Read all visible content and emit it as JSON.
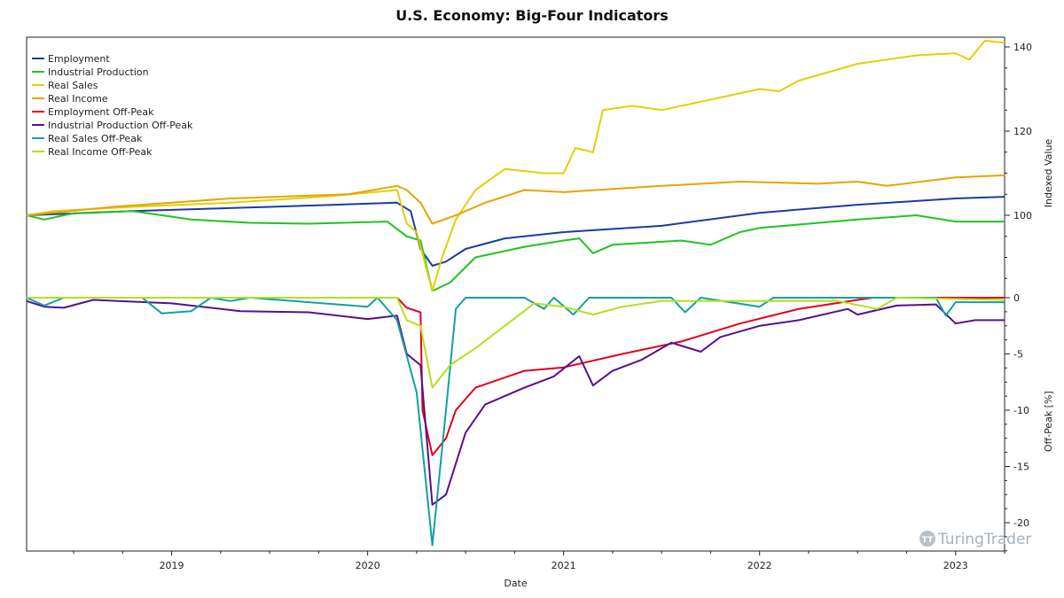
{
  "chart_data": {
    "type": "line",
    "title": "U.S. Economy: Big-Four Indicators",
    "xlabel": "Date",
    "ylabel_upper": "Indexed Value",
    "ylabel_lower": "Off-Peak [%]",
    "xlim": [
      2018.26,
      2023.25
    ],
    "ylim_upper": [
      80,
      143
    ],
    "ylim_lower": [
      -22.5,
      0
    ],
    "x_ticks": [
      "2019",
      "2020",
      "2021",
      "2022",
      "2023"
    ],
    "y_ticks_upper": [
      "100",
      "120",
      "140"
    ],
    "y_ticks_lower": [
      "0",
      "-5",
      "-10",
      "-15",
      "-20"
    ],
    "legend_position": "top-left",
    "watermark": "TuringTrader",
    "series": [
      {
        "name": "Employment",
        "panel": "upper",
        "color": "#1c3c9c",
        "points": [
          [
            2018.26,
            100
          ],
          [
            2018.8,
            101
          ],
          [
            2019.5,
            102
          ],
          [
            2020.15,
            103
          ],
          [
            2020.22,
            101
          ],
          [
            2020.27,
            92
          ],
          [
            2020.33,
            88
          ],
          [
            2020.4,
            89
          ],
          [
            2020.5,
            92
          ],
          [
            2020.7,
            94.5
          ],
          [
            2021.0,
            96
          ],
          [
            2021.5,
            97.5
          ],
          [
            2022.0,
            100.6
          ],
          [
            2022.5,
            102.5
          ],
          [
            2023.0,
            104
          ],
          [
            2023.25,
            104.4
          ]
        ]
      },
      {
        "name": "Industrial Production",
        "panel": "upper",
        "color": "#22c322",
        "points": [
          [
            2018.26,
            100
          ],
          [
            2018.35,
            99
          ],
          [
            2018.5,
            100.5
          ],
          [
            2018.8,
            101
          ],
          [
            2019.1,
            99
          ],
          [
            2019.4,
            98.2
          ],
          [
            2019.7,
            98
          ],
          [
            2020.1,
            98.5
          ],
          [
            2020.2,
            95
          ],
          [
            2020.27,
            94
          ],
          [
            2020.33,
            82
          ],
          [
            2020.42,
            84
          ],
          [
            2020.55,
            90
          ],
          [
            2020.8,
            92.5
          ],
          [
            2021.0,
            94
          ],
          [
            2021.08,
            94.5
          ],
          [
            2021.15,
            91
          ],
          [
            2021.25,
            93
          ],
          [
            2021.6,
            94
          ],
          [
            2021.75,
            93
          ],
          [
            2021.9,
            96
          ],
          [
            2022.0,
            97
          ],
          [
            2022.5,
            99
          ],
          [
            2022.8,
            100
          ],
          [
            2023.0,
            98.5
          ],
          [
            2023.25,
            98.5
          ]
        ]
      },
      {
        "name": "Real Sales",
        "panel": "upper",
        "color": "#e2d000",
        "points": [
          [
            2018.26,
            100
          ],
          [
            2018.4,
            101
          ],
          [
            2018.8,
            102
          ],
          [
            2019.3,
            103
          ],
          [
            2019.8,
            104.5
          ],
          [
            2020.15,
            106
          ],
          [
            2020.2,
            98
          ],
          [
            2020.25,
            96
          ],
          [
            2020.33,
            82
          ],
          [
            2020.38,
            90
          ],
          [
            2020.45,
            99
          ],
          [
            2020.55,
            106
          ],
          [
            2020.7,
            111
          ],
          [
            2020.9,
            110
          ],
          [
            2021.0,
            110
          ],
          [
            2021.06,
            116
          ],
          [
            2021.15,
            115
          ],
          [
            2021.2,
            125
          ],
          [
            2021.35,
            126
          ],
          [
            2021.5,
            125
          ],
          [
            2021.7,
            127
          ],
          [
            2022.0,
            130
          ],
          [
            2022.1,
            129.5
          ],
          [
            2022.2,
            132
          ],
          [
            2022.5,
            136
          ],
          [
            2022.8,
            138
          ],
          [
            2023.0,
            138.5
          ],
          [
            2023.07,
            137
          ],
          [
            2023.15,
            141.5
          ],
          [
            2023.25,
            141
          ]
        ]
      },
      {
        "name": "Real Income",
        "panel": "upper",
        "color": "#e8a200",
        "points": [
          [
            2018.26,
            100
          ],
          [
            2018.7,
            102
          ],
          [
            2019.3,
            104
          ],
          [
            2019.9,
            105
          ],
          [
            2020.15,
            107
          ],
          [
            2020.2,
            106
          ],
          [
            2020.27,
            103
          ],
          [
            2020.33,
            98
          ],
          [
            2020.45,
            100
          ],
          [
            2020.6,
            103
          ],
          [
            2020.8,
            106
          ],
          [
            2021.0,
            105.5
          ],
          [
            2021.5,
            107
          ],
          [
            2021.9,
            108
          ],
          [
            2022.3,
            107.5
          ],
          [
            2022.5,
            108
          ],
          [
            2022.65,
            107
          ],
          [
            2023.0,
            109
          ],
          [
            2023.25,
            109.5
          ]
        ]
      },
      {
        "name": "Employment Off-Peak",
        "panel": "lower",
        "color": "#e4001c",
        "points": [
          [
            2018.26,
            0
          ],
          [
            2020.15,
            0
          ],
          [
            2020.2,
            -0.9
          ],
          [
            2020.27,
            -1.3
          ],
          [
            2020.28,
            -10
          ],
          [
            2020.33,
            -14
          ],
          [
            2020.4,
            -12.5
          ],
          [
            2020.45,
            -10
          ],
          [
            2020.55,
            -8
          ],
          [
            2020.8,
            -6.5
          ],
          [
            2021.0,
            -6.2
          ],
          [
            2021.3,
            -5
          ],
          [
            2021.6,
            -3.9
          ],
          [
            2021.9,
            -2.3
          ],
          [
            2022.2,
            -1
          ],
          [
            2022.5,
            -0.2
          ],
          [
            2022.58,
            0
          ],
          [
            2023.25,
            0
          ]
        ]
      },
      {
        "name": "Industrial Production Off-Peak",
        "panel": "lower",
        "color": "#561090",
        "points": [
          [
            2018.26,
            -0.3
          ],
          [
            2018.35,
            -0.8
          ],
          [
            2018.45,
            -0.9
          ],
          [
            2018.6,
            -0.2
          ],
          [
            2019.0,
            -0.5
          ],
          [
            2019.35,
            -1.2
          ],
          [
            2019.7,
            -1.3
          ],
          [
            2020.0,
            -1.9
          ],
          [
            2020.15,
            -1.6
          ],
          [
            2020.2,
            -5
          ],
          [
            2020.27,
            -6
          ],
          [
            2020.33,
            -18.4
          ],
          [
            2020.4,
            -17.5
          ],
          [
            2020.5,
            -12
          ],
          [
            2020.6,
            -9.5
          ],
          [
            2020.8,
            -8
          ],
          [
            2020.95,
            -7
          ],
          [
            2021.08,
            -5.2
          ],
          [
            2021.15,
            -7.8
          ],
          [
            2021.25,
            -6.5
          ],
          [
            2021.4,
            -5.5
          ],
          [
            2021.55,
            -4
          ],
          [
            2021.7,
            -4.8
          ],
          [
            2021.8,
            -3.5
          ],
          [
            2022.0,
            -2.5
          ],
          [
            2022.2,
            -2
          ],
          [
            2022.45,
            -1
          ],
          [
            2022.5,
            -1.5
          ],
          [
            2022.7,
            -0.7
          ],
          [
            2022.9,
            -0.6
          ],
          [
            2023.0,
            -2.3
          ],
          [
            2023.1,
            -2
          ],
          [
            2023.25,
            -2
          ]
        ]
      },
      {
        "name": "Real Sales Off-Peak",
        "panel": "lower",
        "color": "#12a0a0",
        "points": [
          [
            2018.26,
            0
          ],
          [
            2018.35,
            -0.7
          ],
          [
            2018.45,
            0
          ],
          [
            2018.85,
            0
          ],
          [
            2018.95,
            -1.4
          ],
          [
            2019.1,
            -1.2
          ],
          [
            2019.2,
            0
          ],
          [
            2019.3,
            -0.3
          ],
          [
            2019.4,
            0
          ],
          [
            2020.0,
            -0.8
          ],
          [
            2020.05,
            0
          ],
          [
            2020.15,
            -2
          ],
          [
            2020.25,
            -8.4
          ],
          [
            2020.33,
            -22
          ],
          [
            2020.4,
            -10
          ],
          [
            2020.45,
            -1
          ],
          [
            2020.5,
            0
          ],
          [
            2020.8,
            0
          ],
          [
            2020.9,
            -1
          ],
          [
            2020.95,
            0
          ],
          [
            2021.05,
            -1.5
          ],
          [
            2021.13,
            0
          ],
          [
            2021.55,
            0
          ],
          [
            2021.62,
            -1.3
          ],
          [
            2021.7,
            0
          ],
          [
            2022.0,
            -0.8
          ],
          [
            2022.07,
            0
          ],
          [
            2022.9,
            0
          ],
          [
            2022.95,
            -1.6
          ],
          [
            2023.0,
            -0.4
          ],
          [
            2023.25,
            -0.4
          ]
        ]
      },
      {
        "name": "Real Income Off-Peak",
        "panel": "lower",
        "color": "#b4e01e",
        "points": [
          [
            2018.26,
            0
          ],
          [
            2020.15,
            0
          ],
          [
            2020.2,
            -2
          ],
          [
            2020.27,
            -2.5
          ],
          [
            2020.33,
            -8
          ],
          [
            2020.42,
            -6
          ],
          [
            2020.55,
            -4.5
          ],
          [
            2020.7,
            -2.5
          ],
          [
            2020.85,
            -0.5
          ],
          [
            2021.0,
            -0.8
          ],
          [
            2021.15,
            -1.5
          ],
          [
            2021.3,
            -0.8
          ],
          [
            2021.5,
            -0.3
          ],
          [
            2022.4,
            -0.3
          ],
          [
            2022.6,
            -1
          ],
          [
            2022.7,
            0
          ],
          [
            2023.25,
            -0.2
          ]
        ]
      }
    ]
  }
}
